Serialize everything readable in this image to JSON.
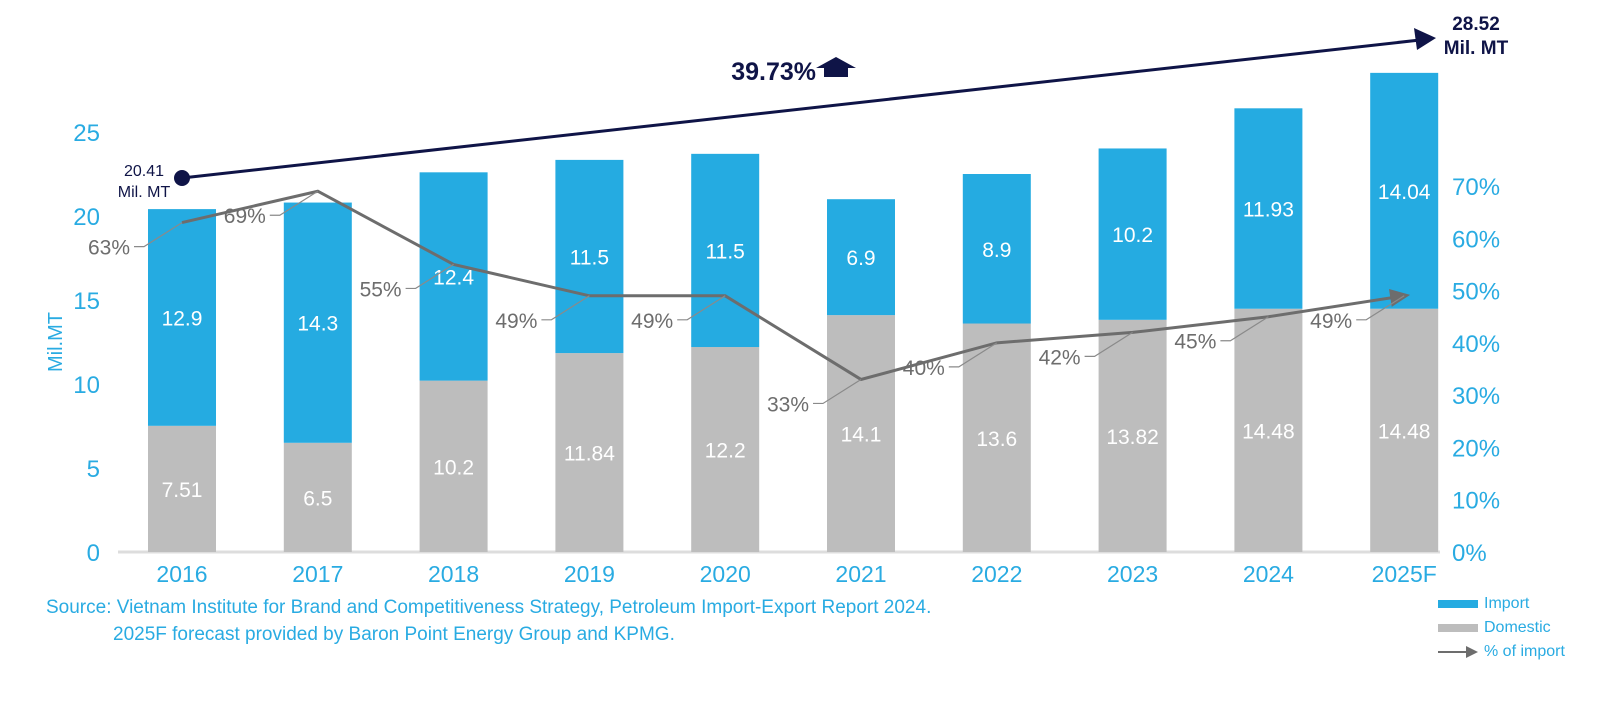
{
  "chart_data": {
    "type": "bar",
    "stacked": true,
    "categories": [
      "2016",
      "2017",
      "2018",
      "2019",
      "2020",
      "2021",
      "2022",
      "2023",
      "2024",
      "2025F"
    ],
    "series": [
      {
        "name": "Domestic",
        "color": "#bdbdbd",
        "values": [
          7.51,
          6.5,
          10.2,
          11.84,
          12.2,
          14.1,
          13.6,
          13.82,
          14.48,
          14.48
        ]
      },
      {
        "name": "Import",
        "color": "#25abe1",
        "values": [
          12.9,
          14.3,
          12.4,
          11.5,
          11.5,
          6.9,
          8.9,
          10.2,
          11.93,
          14.04
        ]
      }
    ],
    "line_series": {
      "name": "% of import",
      "color": "#6d6d6d",
      "values": [
        63,
        69,
        55,
        49,
        49,
        33,
        40,
        42,
        45,
        49
      ],
      "labels": [
        "63%",
        "69%",
        "55%",
        "49%",
        "49%",
        "33%",
        "40%",
        "42%",
        "45%",
        "49%"
      ]
    },
    "ylabel": "Mil.MT",
    "ylim": [
      0,
      25
    ],
    "yticks": [
      "0",
      "5",
      "10",
      "15",
      "20",
      "25"
    ],
    "y2lim": [
      0,
      70
    ],
    "y2ticks": [
      "0%",
      "10%",
      "20%",
      "30%",
      "40%",
      "50%",
      "60%",
      "70%"
    ],
    "annotation": {
      "growth": "39.73%",
      "start_value": "20.41",
      "start_unit": "Mil. MT",
      "end_value": "28.52",
      "end_unit": "Mil. MT"
    },
    "legend": [
      "Import",
      "Domestic",
      "% of import"
    ],
    "legend_position": "bottom-right"
  },
  "source": {
    "line1": "Source:  Vietnam Institute for Brand and Competitiveness Strategy, Petroleum Import-Export Report 2024.",
    "line2": "2025F forecast provided by Baron Point Energy Group and KPMG."
  },
  "colors": {
    "accent": "#29abe2",
    "navy": "#0f1447"
  }
}
